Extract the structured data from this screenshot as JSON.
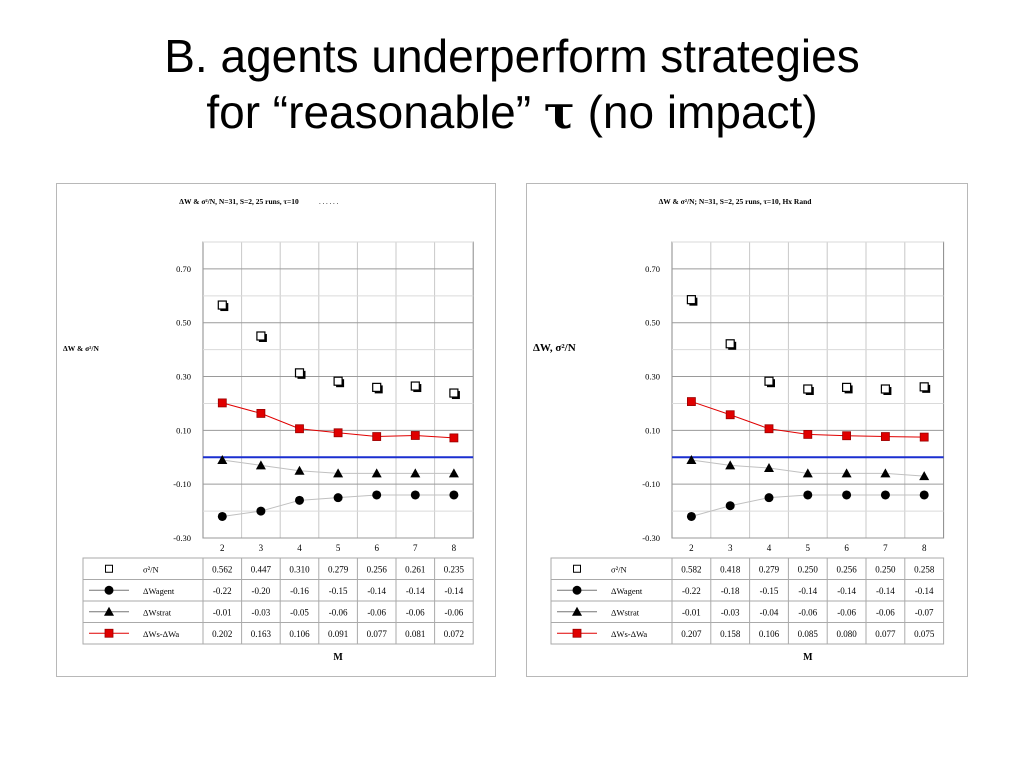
{
  "slide": {
    "title_line1": "B. agents underperform strategies",
    "title_line2_pre": "for “reasonable” ",
    "title_symbol": "τ",
    "title_line2_post": " (no impact)"
  },
  "colors": {
    "series_red": "#e00000",
    "zero_line": "#1a2fd0",
    "marker_black": "#000000",
    "grid": "#c8c8c8",
    "panel_border": "#b8b8b8"
  },
  "chart_data": [
    {
      "type": "line",
      "title": "ΔW & σ²/N,  N=31, S=2, 25 runs, τ=10",
      "title_trail": ". . . . . .",
      "ylabel": "ΔW & σ²/N",
      "xlabel": "M",
      "x": [
        2,
        3,
        4,
        5,
        6,
        7,
        8
      ],
      "ylim": [
        -0.3,
        0.8
      ],
      "yticks": [
        -0.3,
        -0.1,
        0.1,
        0.3,
        0.5,
        0.7
      ],
      "ytick_labels": [
        "-0.30",
        "-0.10",
        "0.10",
        "0.30",
        "0.50",
        "0.70"
      ],
      "grid": true,
      "legend": "table-below",
      "series": [
        {
          "name": "σ²/N",
          "marker": "open-square",
          "line": false,
          "values": [
            0.562,
            0.447,
            0.31,
            0.279,
            0.256,
            0.261,
            0.235
          ],
          "labels": [
            "0.562",
            "0.447",
            "0.310",
            "0.279",
            "0.256",
            "0.261",
            "0.235"
          ]
        },
        {
          "name": "ΔWagent",
          "marker": "circle",
          "line": true,
          "line_color": "#c0c0c0",
          "values": [
            -0.22,
            -0.2,
            -0.16,
            -0.15,
            -0.14,
            -0.14,
            -0.14
          ],
          "labels": [
            "-0.22",
            "-0.20",
            "-0.16",
            "-0.15",
            "-0.14",
            "-0.14",
            "-0.14"
          ]
        },
        {
          "name": "ΔWstrat",
          "marker": "triangle",
          "line": true,
          "line_color": "#c0c0c0",
          "values": [
            -0.01,
            -0.03,
            -0.05,
            -0.06,
            -0.06,
            -0.06,
            -0.06
          ],
          "labels": [
            "-0.01",
            "-0.03",
            "-0.05",
            "-0.06",
            "-0.06",
            "-0.06",
            "-0.06"
          ]
        },
        {
          "name": "ΔWs-ΔWa",
          "marker": "red-square",
          "line": true,
          "line_color": "#e00000",
          "values": [
            0.202,
            0.163,
            0.106,
            0.091,
            0.077,
            0.081,
            0.072
          ],
          "labels": [
            "0.202",
            "0.163",
            "0.106",
            "0.091",
            "0.077",
            "0.081",
            "0.072"
          ]
        }
      ],
      "reference_line": {
        "y": 0,
        "color": "#1a2fd0"
      }
    },
    {
      "type": "line",
      "title": "ΔW & σ²/N; N=31, S=2, 25 runs, τ=10, Hx Rand",
      "title_trail": "",
      "ylabel": "ΔW, σ²/N",
      "xlabel": "M",
      "x": [
        2,
        3,
        4,
        5,
        6,
        7,
        8
      ],
      "ylim": [
        -0.3,
        0.8
      ],
      "yticks": [
        -0.3,
        -0.1,
        0.1,
        0.3,
        0.5,
        0.7
      ],
      "ytick_labels": [
        "-0.30",
        "-0.10",
        "0.10",
        "0.30",
        "0.50",
        "0.70"
      ],
      "grid": true,
      "legend": "table-below",
      "series": [
        {
          "name": "σ²/N",
          "marker": "open-square",
          "line": false,
          "values": [
            0.582,
            0.418,
            0.279,
            0.25,
            0.256,
            0.25,
            0.258
          ],
          "labels": [
            "0.582",
            "0.418",
            "0.279",
            "0.250",
            "0.256",
            "0.250",
            "0.258"
          ]
        },
        {
          "name": "ΔWagent",
          "marker": "circle",
          "line": true,
          "line_color": "#c0c0c0",
          "values": [
            -0.22,
            -0.18,
            -0.15,
            -0.14,
            -0.14,
            -0.14,
            -0.14
          ],
          "labels": [
            "-0.22",
            "-0.18",
            "-0.15",
            "-0.14",
            "-0.14",
            "-0.14",
            "-0.14"
          ]
        },
        {
          "name": "ΔWstrat",
          "marker": "triangle",
          "line": true,
          "line_color": "#c0c0c0",
          "values": [
            -0.01,
            -0.03,
            -0.04,
            -0.06,
            -0.06,
            -0.06,
            -0.07
          ],
          "labels": [
            "-0.01",
            "-0.03",
            "-0.04",
            "-0.06",
            "-0.06",
            "-0.06",
            "-0.07"
          ]
        },
        {
          "name": "ΔWs-ΔWa",
          "marker": "red-square",
          "line": true,
          "line_color": "#e00000",
          "values": [
            0.207,
            0.158,
            0.106,
            0.085,
            0.08,
            0.077,
            0.075
          ],
          "labels": [
            "0.207",
            "0.158",
            "0.106",
            "0.085",
            "0.080",
            "0.077",
            "0.075"
          ]
        }
      ],
      "reference_line": {
        "y": 0,
        "color": "#1a2fd0"
      }
    }
  ]
}
